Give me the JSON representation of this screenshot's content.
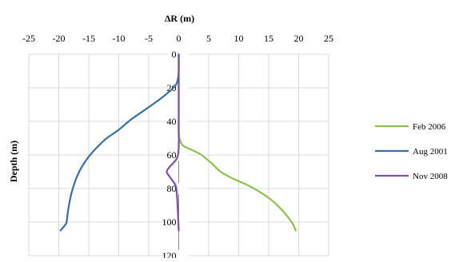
{
  "chart_data": {
    "type": "line",
    "title": "",
    "xlabel": "ΔR (m)",
    "ylabel": "Depth (m)",
    "xlim": [
      -25,
      25
    ],
    "ylim": [
      0,
      120
    ],
    "y_inverted": true,
    "x_axis_position": "top",
    "x_ticks": [
      -25,
      -20,
      -15,
      -10,
      -5,
      0,
      5,
      10,
      15,
      20,
      25
    ],
    "y_ticks": [
      0,
      20,
      40,
      60,
      80,
      100,
      120
    ],
    "grid": "vertical and horizontal gridlines",
    "legend_position": "right",
    "series": [
      {
        "name": "Feb 2006",
        "color": "#8cc152",
        "points": [
          [
            0,
            0
          ],
          [
            0,
            10
          ],
          [
            0,
            20
          ],
          [
            0,
            30
          ],
          [
            0,
            40
          ],
          [
            0,
            48
          ],
          [
            0.6,
            54
          ],
          [
            2.2,
            57
          ],
          [
            3.8,
            60
          ],
          [
            5.5,
            65
          ],
          [
            7,
            70
          ],
          [
            9,
            74
          ],
          [
            11.5,
            78
          ],
          [
            13.5,
            82
          ],
          [
            15.5,
            87
          ],
          [
            17,
            92
          ],
          [
            18.2,
            97
          ],
          [
            19,
            101
          ],
          [
            19.5,
            105
          ]
        ]
      },
      {
        "name": "Aug 2001",
        "color": "#3a6ea5",
        "points": [
          [
            0,
            0
          ],
          [
            0,
            10
          ],
          [
            -0.3,
            17
          ],
          [
            -1.2,
            21
          ],
          [
            -2.5,
            25
          ],
          [
            -4,
            29
          ],
          [
            -6,
            34
          ],
          [
            -8,
            39
          ],
          [
            -10,
            45
          ],
          [
            -12,
            50
          ],
          [
            -13.5,
            55
          ],
          [
            -15,
            61
          ],
          [
            -16.3,
            68
          ],
          [
            -17.2,
            75
          ],
          [
            -17.9,
            83
          ],
          [
            -18.4,
            92
          ],
          [
            -18.7,
            100
          ],
          [
            -19,
            102
          ],
          [
            -19.7,
            105
          ]
        ]
      },
      {
        "name": "Nov 2008",
        "color": "#7b52a6",
        "points": [
          [
            0,
            0
          ],
          [
            0,
            20
          ],
          [
            0,
            40
          ],
          [
            0,
            55
          ],
          [
            -0.3,
            62
          ],
          [
            -1.5,
            67
          ],
          [
            -2,
            70
          ],
          [
            -1.5,
            73
          ],
          [
            -0.7,
            77
          ],
          [
            -0.4,
            80
          ],
          [
            -0.2,
            90
          ],
          [
            0,
            105
          ]
        ]
      }
    ]
  }
}
